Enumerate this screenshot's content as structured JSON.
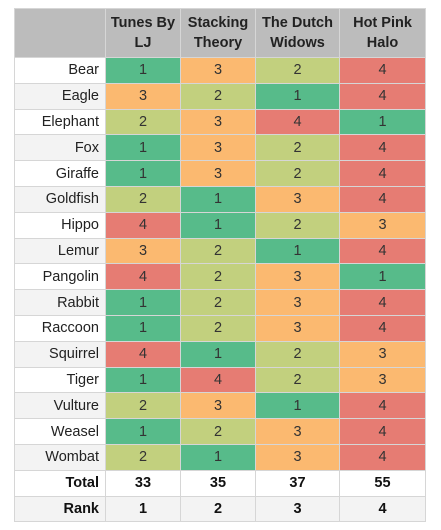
{
  "header": {
    "corner": "",
    "teams": [
      "Tunes By LJ",
      "Stacking Theory",
      "The Dutch Widows",
      "Hot Pink Halo"
    ]
  },
  "colors": {
    "rank_1": "#57bb8a",
    "rank_2": "#c2d07e",
    "rank_3": "#fbb970",
    "rank_4": "#e67c73",
    "header_bg": "#bcbcbc"
  },
  "rows": [
    {
      "animal": "Bear",
      "scores": [
        "1",
        "3",
        "2",
        "4"
      ]
    },
    {
      "animal": "Eagle",
      "scores": [
        "3",
        "2",
        "1",
        "4"
      ]
    },
    {
      "animal": "Elephant",
      "scores": [
        "2",
        "3",
        "4",
        "1"
      ]
    },
    {
      "animal": "Fox",
      "scores": [
        "1",
        "3",
        "2",
        "4"
      ]
    },
    {
      "animal": "Giraffe",
      "scores": [
        "1",
        "3",
        "2",
        "4"
      ]
    },
    {
      "animal": "Goldfish",
      "scores": [
        "2",
        "1",
        "3",
        "4"
      ]
    },
    {
      "animal": "Hippo",
      "scores": [
        "4",
        "1",
        "2",
        "3"
      ]
    },
    {
      "animal": "Lemur",
      "scores": [
        "3",
        "2",
        "1",
        "4"
      ]
    },
    {
      "animal": "Pangolin",
      "scores": [
        "4",
        "2",
        "3",
        "1"
      ]
    },
    {
      "animal": "Rabbit",
      "scores": [
        "1",
        "2",
        "3",
        "4"
      ]
    },
    {
      "animal": "Raccoon",
      "scores": [
        "1",
        "2",
        "3",
        "4"
      ]
    },
    {
      "animal": "Squirrel",
      "scores": [
        "4",
        "1",
        "2",
        "3"
      ]
    },
    {
      "animal": "Tiger",
      "scores": [
        "1",
        "4",
        "2",
        "3"
      ]
    },
    {
      "animal": "Vulture",
      "scores": [
        "2",
        "3",
        "1",
        "4"
      ]
    },
    {
      "animal": "Weasel",
      "scores": [
        "1",
        "2",
        "3",
        "4"
      ]
    },
    {
      "animal": "Wombat",
      "scores": [
        "2",
        "1",
        "3",
        "4"
      ]
    }
  ],
  "totals": {
    "label": "Total",
    "values": [
      "33",
      "35",
      "37",
      "55"
    ]
  },
  "ranks": {
    "label": "Rank",
    "values": [
      "1",
      "2",
      "3",
      "4"
    ]
  }
}
